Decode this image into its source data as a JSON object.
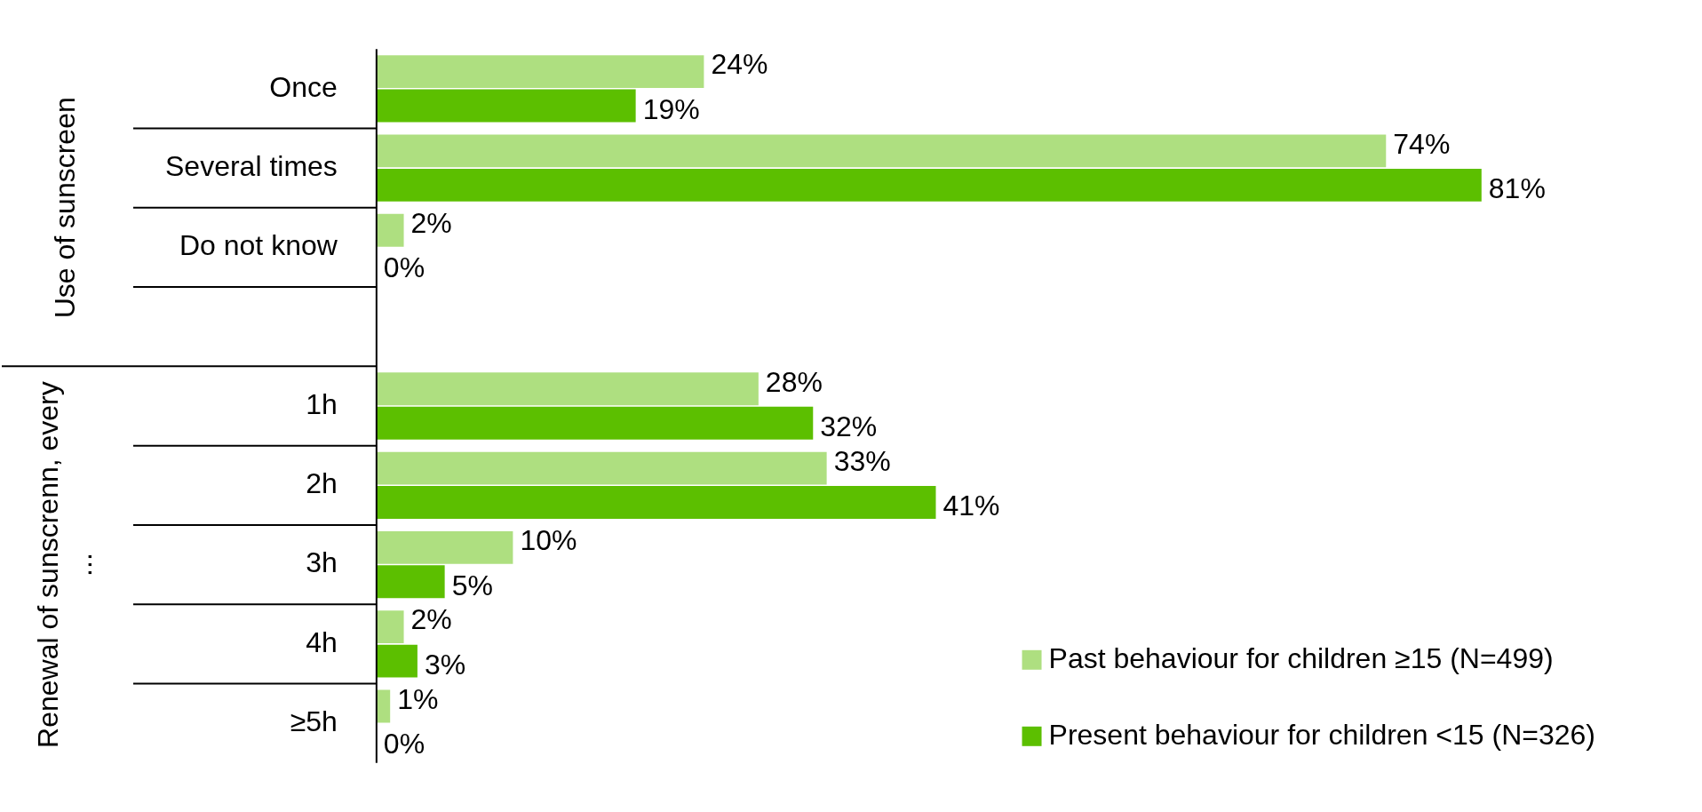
{
  "chart_data": {
    "type": "bar",
    "orientation": "horizontal",
    "categories": [
      "Once",
      "Several times",
      "Do not know",
      null,
      "1h",
      "2h",
      "3h",
      "4h",
      "≥5h"
    ],
    "series": [
      {
        "name": "Past behaviour for children ≥15 (N=499)",
        "color": "#aedf80",
        "values": [
          24,
          74,
          2,
          null,
          28,
          33,
          10,
          2,
          1
        ],
        "value_labels": [
          "24%",
          "74%",
          "2%",
          null,
          "28%",
          "33%",
          "10%",
          "2%",
          "1%"
        ]
      },
      {
        "name": "Present behaviour for children <15 (N=326)",
        "color": "#5cbf00",
        "values": [
          19,
          81,
          0,
          null,
          32,
          41,
          5,
          3,
          0
        ],
        "value_labels": [
          "19%",
          "81%",
          "0%",
          null,
          "32%",
          "41%",
          "5%",
          "3%",
          "0%"
        ]
      }
    ],
    "annotations": [
      "Use of sunscreen",
      "Renewal of sunscrenn, every ..."
    ],
    "legend": "bottom right"
  }
}
